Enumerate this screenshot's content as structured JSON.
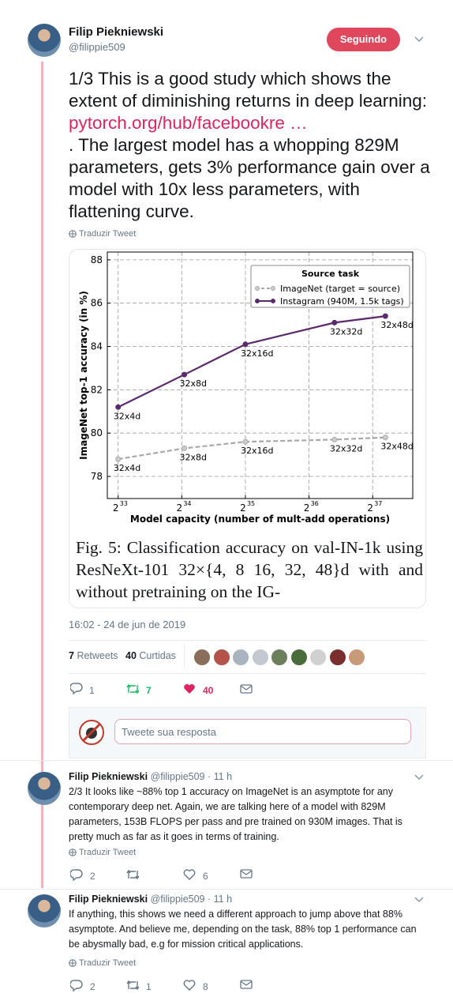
{
  "tweet": {
    "author": "Filip Piekniewski",
    "handle": "@filippie509",
    "follow_button": "Seguindo",
    "text_before_link": "1/3 This is a good study which shows the extent of diminishing returns in deep learning: ",
    "link": "pytorch.org/hub/facebookre …",
    "text_after_link": " . The largest model has a whopping 829M parameters, gets 3% performance gain over a model with 10x less parameters, with flattening curve.",
    "translate": "Traduzir Tweet",
    "figure": {
      "chart_data": {
        "type": "line",
        "x_label": "Model capacity (number of mult-add operations)",
        "y_label": "ImageNet top-1 accuracy (in %)",
        "legend_title": "Source task",
        "legend": "upper right",
        "grid": true,
        "xscale_base": 2,
        "xlim": [
          32.83,
          37.63
        ],
        "xticks": [
          33,
          34,
          35,
          36,
          37
        ],
        "ylim": [
          76.98,
          88.36
        ],
        "yticks": [
          78,
          80,
          82,
          84,
          86,
          88
        ],
        "point_labels": [
          "32x4d",
          "32x8d",
          "32x16d",
          "32x32d",
          "32x48d"
        ],
        "series": [
          {
            "name": "ImageNet (target = source)",
            "color": "#a9a9a9",
            "linestyle": "dashed",
            "x": [
              33,
              34.04,
              35,
              36.4,
              37.2
            ],
            "values": [
              78.8,
              79.3,
              79.6,
              79.7,
              79.8
            ]
          },
          {
            "name": "Instagram (940M, 1.5k tags)",
            "color": "#5b2a6e",
            "linestyle": "solid",
            "x": [
              33,
              34.04,
              35,
              36.4,
              37.2
            ],
            "values": [
              81.2,
              82.7,
              84.1,
              85.1,
              85.4
            ]
          }
        ]
      },
      "caption": "Fig. 5: Classification accuracy on val-IN-1k using ResNeXt-101 32×{4, 8 16, 32, 48}d with and without pretraining on the IG-"
    },
    "timestamp": "16:02 - 24 de jun de 2019",
    "retweets": {
      "count": 7,
      "label": "Retweets"
    },
    "likes": {
      "count": 40,
      "label": "Curtidas"
    },
    "actions": {
      "replies": 1,
      "retweets": 7,
      "likes": 40
    }
  },
  "reply_box": {
    "placeholder": "Tweete sua resposta"
  },
  "replies": [
    {
      "author": "Filip Piekniewski",
      "handle": "@filippie509",
      "time": "· 11 h",
      "text": "2/3 It looks like ~88% top 1 accuracy on ImageNet is an asymptote for any contemporary deep net. Again, we are talking here of a model with 829M parameters, 153B FLOPS per pass and pre trained on 930M images. That is pretty much as far as it goes in terms of training.",
      "translate": "Traduzir Tweet",
      "actions": {
        "replies": 2,
        "likes": 6
      }
    },
    {
      "author": "Filip Piekniewski",
      "handle": "@filippie509",
      "time": "· 11 h",
      "text": "If anything, this shows we need a different approach to jump above that 88% asymptote. And believe me, depending on the task, 88% top 1 performance can be abysmally bad, e.g for mission critical applications.",
      "translate": "Traduzir Tweet",
      "actions": {
        "replies": 2,
        "retweets": 1,
        "likes": 8
      }
    }
  ]
}
